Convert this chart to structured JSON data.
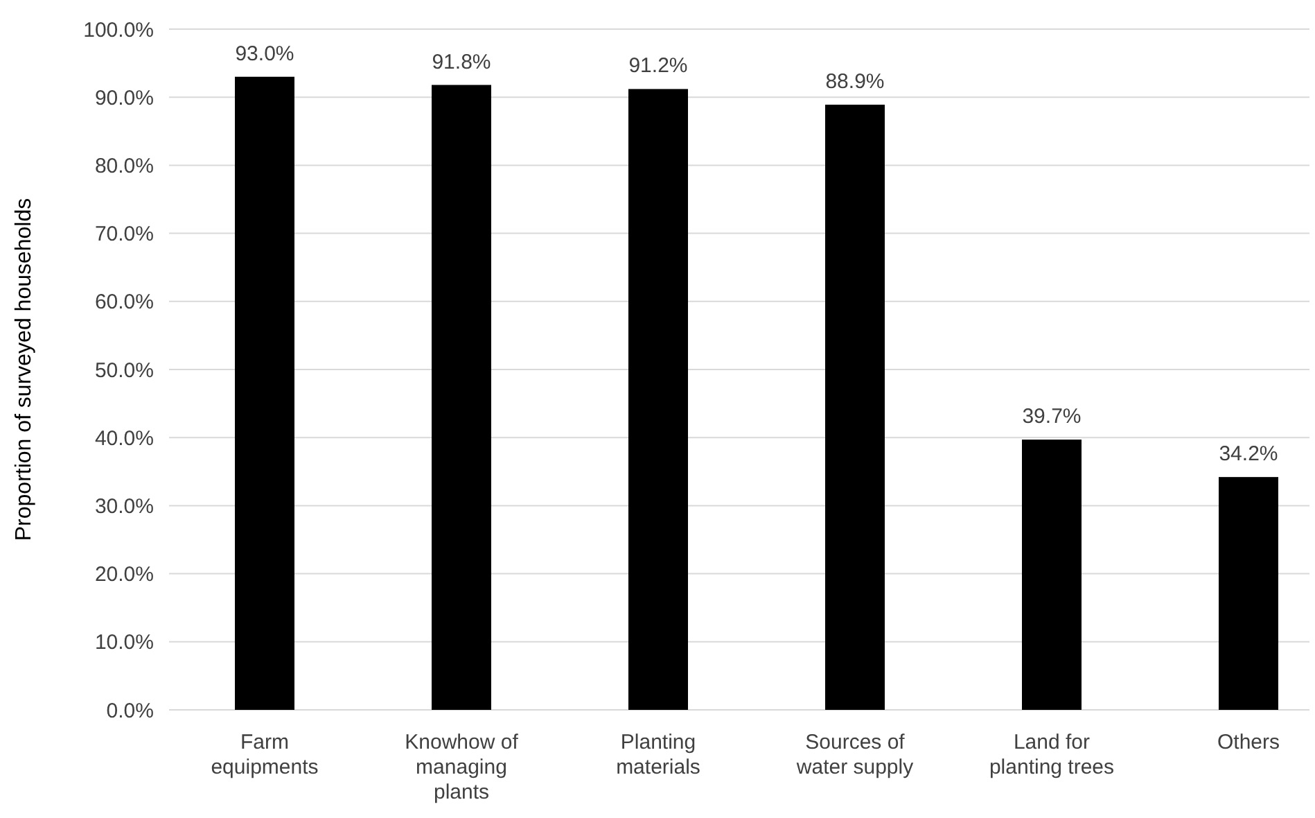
{
  "chart_data": {
    "type": "bar",
    "ylabel": "Proportion of surveyed households",
    "categories": [
      "Farm equipments",
      "Knowhow of managing plants",
      "Planting materials",
      "Sources of water supply",
      "Land for planting trees",
      "Others"
    ],
    "values": [
      93.0,
      91.8,
      91.2,
      88.9,
      39.7,
      34.2
    ],
    "value_labels": [
      "93.0%",
      "91.8%",
      "91.2%",
      "88.9%",
      "39.7%",
      "34.2%"
    ],
    "color": "#000000",
    "ylim": [
      0,
      100
    ],
    "yticks": [
      {
        "value": 0,
        "label": "0.0%"
      },
      {
        "value": 10,
        "label": "10.0%"
      },
      {
        "value": 20,
        "label": "20.0%"
      },
      {
        "value": 30,
        "label": "30.0%"
      },
      {
        "value": 40,
        "label": "40.0%"
      },
      {
        "value": 50,
        "label": "50.0%"
      },
      {
        "value": 60,
        "label": "60.0%"
      },
      {
        "value": 70,
        "label": "70.0%"
      },
      {
        "value": 80,
        "label": "80.0%"
      },
      {
        "value": 90,
        "label": "90.0%"
      },
      {
        "value": 100,
        "label": "100.0%"
      }
    ],
    "grid": "y"
  }
}
